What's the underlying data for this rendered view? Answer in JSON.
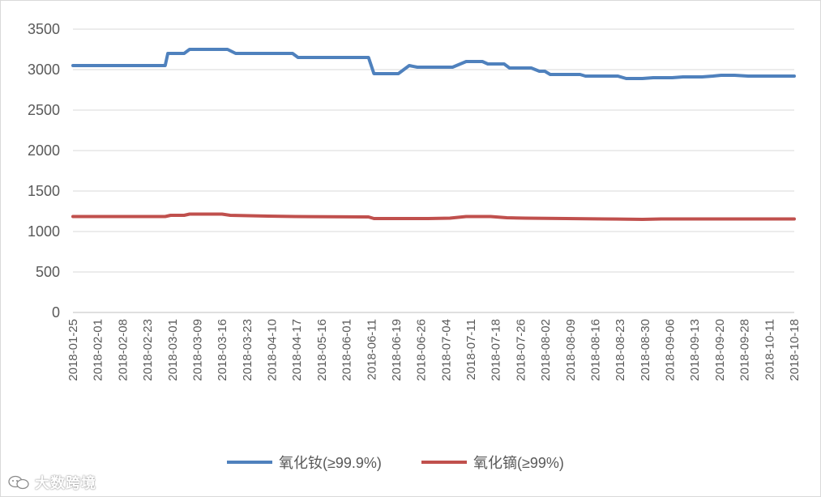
{
  "chart_data": {
    "type": "line",
    "title": "",
    "xlabel": "",
    "ylabel": "",
    "ylim": [
      0,
      3500
    ],
    "yticks": [
      0,
      500,
      1000,
      1500,
      2000,
      2500,
      3000,
      3500
    ],
    "grid": "horizontal",
    "legend_position": "bottom",
    "x": [
      "2018-01-25",
      "2018-02-01",
      "2018-02-08",
      "2018-02-23",
      "2018-03-01",
      "2018-03-09",
      "2018-03-16",
      "2018-03-23",
      "2018-04-10",
      "2018-04-17",
      "2018-05-16",
      "2018-06-01",
      "2018-06-11",
      "2018-06-19",
      "2018-06-26",
      "2018-07-04",
      "2018-07-11",
      "2018-07-18",
      "2018-07-26",
      "2018-08-02",
      "2018-08-09",
      "2018-08-16",
      "2018-08-23",
      "2018-08-30",
      "2018-09-06",
      "2018-09-13",
      "2018-09-20",
      "2018-09-28",
      "2018-10-11",
      "2018-10-18"
    ],
    "series": [
      {
        "name": "氧化钕(≥99.9%)",
        "color": "#4f81bd",
        "points": [
          [
            "2018-01-25",
            3050
          ],
          [
            "2018-02-28",
            3050
          ],
          [
            "2018-03-01",
            3200
          ],
          [
            "2018-03-07",
            3200
          ],
          [
            "2018-03-09",
            3250
          ],
          [
            "2018-03-23",
            3250
          ],
          [
            "2018-03-26",
            3200
          ],
          [
            "2018-04-16",
            3200
          ],
          [
            "2018-04-18",
            3150
          ],
          [
            "2018-05-14",
            3150
          ],
          [
            "2018-05-16",
            2950
          ],
          [
            "2018-05-25",
            2950
          ],
          [
            "2018-05-29",
            3050
          ],
          [
            "2018-06-01",
            3030
          ],
          [
            "2018-06-14",
            3030
          ],
          [
            "2018-06-19",
            3100
          ],
          [
            "2018-06-25",
            3100
          ],
          [
            "2018-06-27",
            3070
          ],
          [
            "2018-07-03",
            3070
          ],
          [
            "2018-07-05",
            3020
          ],
          [
            "2018-07-13",
            3020
          ],
          [
            "2018-07-16",
            2980
          ],
          [
            "2018-07-18",
            2980
          ],
          [
            "2018-07-20",
            2940
          ],
          [
            "2018-07-31",
            2940
          ],
          [
            "2018-08-02",
            2920
          ],
          [
            "2018-08-14",
            2920
          ],
          [
            "2018-08-17",
            2890
          ],
          [
            "2018-08-23",
            2890
          ],
          [
            "2018-08-27",
            2900
          ],
          [
            "2018-09-03",
            2900
          ],
          [
            "2018-09-07",
            2910
          ],
          [
            "2018-09-14",
            2910
          ],
          [
            "2018-09-18",
            2920
          ],
          [
            "2018-09-21",
            2930
          ],
          [
            "2018-09-26",
            2930
          ],
          [
            "2018-10-01",
            2920
          ],
          [
            "2018-10-18",
            2920
          ]
        ]
      },
      {
        "name": "氧化镝(≥99%)",
        "color": "#c0504d",
        "points": [
          [
            "2018-01-25",
            1185
          ],
          [
            "2018-02-28",
            1185
          ],
          [
            "2018-03-02",
            1200
          ],
          [
            "2018-03-07",
            1200
          ],
          [
            "2018-03-09",
            1215
          ],
          [
            "2018-03-21",
            1215
          ],
          [
            "2018-03-24",
            1200
          ],
          [
            "2018-04-07",
            1190
          ],
          [
            "2018-04-17",
            1185
          ],
          [
            "2018-05-14",
            1180
          ],
          [
            "2018-05-16",
            1160
          ],
          [
            "2018-06-05",
            1160
          ],
          [
            "2018-06-13",
            1165
          ],
          [
            "2018-06-19",
            1185
          ],
          [
            "2018-06-28",
            1185
          ],
          [
            "2018-07-04",
            1170
          ],
          [
            "2018-07-11",
            1165
          ],
          [
            "2018-07-26",
            1160
          ],
          [
            "2018-08-09",
            1155
          ],
          [
            "2018-08-23",
            1150
          ],
          [
            "2018-08-30",
            1155
          ],
          [
            "2018-09-13",
            1155
          ],
          [
            "2018-10-18",
            1155
          ]
        ]
      }
    ]
  },
  "watermark": {
    "text": "大数跨境",
    "icon": "wechat-bubble-icon"
  }
}
